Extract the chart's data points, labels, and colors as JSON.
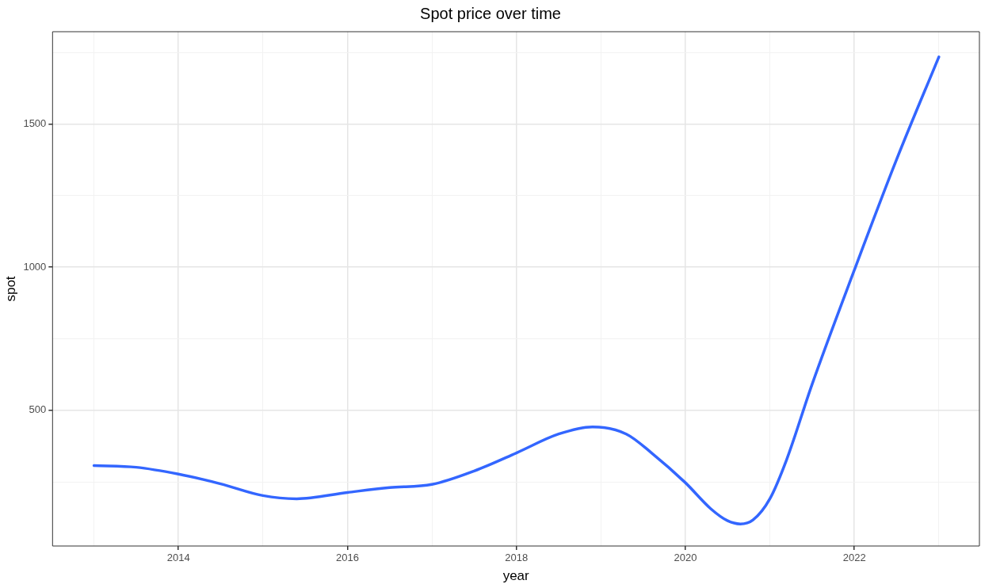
{
  "chart_data": {
    "type": "line",
    "title": "Spot price over time",
    "xlabel": "year",
    "ylabel": "spot",
    "x": [
      2013,
      2013.5,
      2014,
      2014.5,
      2015,
      2015.4,
      2016,
      2016.5,
      2017,
      2017.5,
      2018,
      2018.5,
      2018.9,
      2019.3,
      2019.6,
      2020,
      2020.3,
      2020.5,
      2020.65,
      2020.8,
      2021,
      2021.2,
      2021.5,
      2022,
      2022.5,
      2023
    ],
    "series": [
      {
        "color": "#3366ff",
        "values": [
          307,
          301,
          277,
          243,
          202,
          191,
          213,
          230,
          241,
          288,
          351,
          417,
          442,
          417,
          351,
          247,
          156,
          114,
          103,
          117,
          191,
          329,
          591,
          990,
          1376,
          1734
        ]
      }
    ],
    "xlim": [
      2012.51,
      2023.48
    ],
    "xticks": [
      {
        "value": 2013,
        "label": null
      },
      2014,
      {
        "value": 2015,
        "label": null
      },
      2016,
      {
        "value": 2017,
        "label": null
      },
      2018,
      {
        "value": 2019,
        "label": null
      },
      2020,
      {
        "value": 2021,
        "label": null
      },
      2022,
      {
        "value": 2023,
        "label": null
      }
    ],
    "ylim": [
      26,
      1822
    ],
    "yticks": [
      {
        "value": 250,
        "label": null
      },
      500,
      {
        "value": 750,
        "label": null
      },
      1000,
      {
        "value": 1250,
        "label": null
      },
      1500,
      {
        "value": 1750,
        "label": null
      }
    ],
    "grid": true,
    "marker": "none",
    "line_style": "solid"
  }
}
